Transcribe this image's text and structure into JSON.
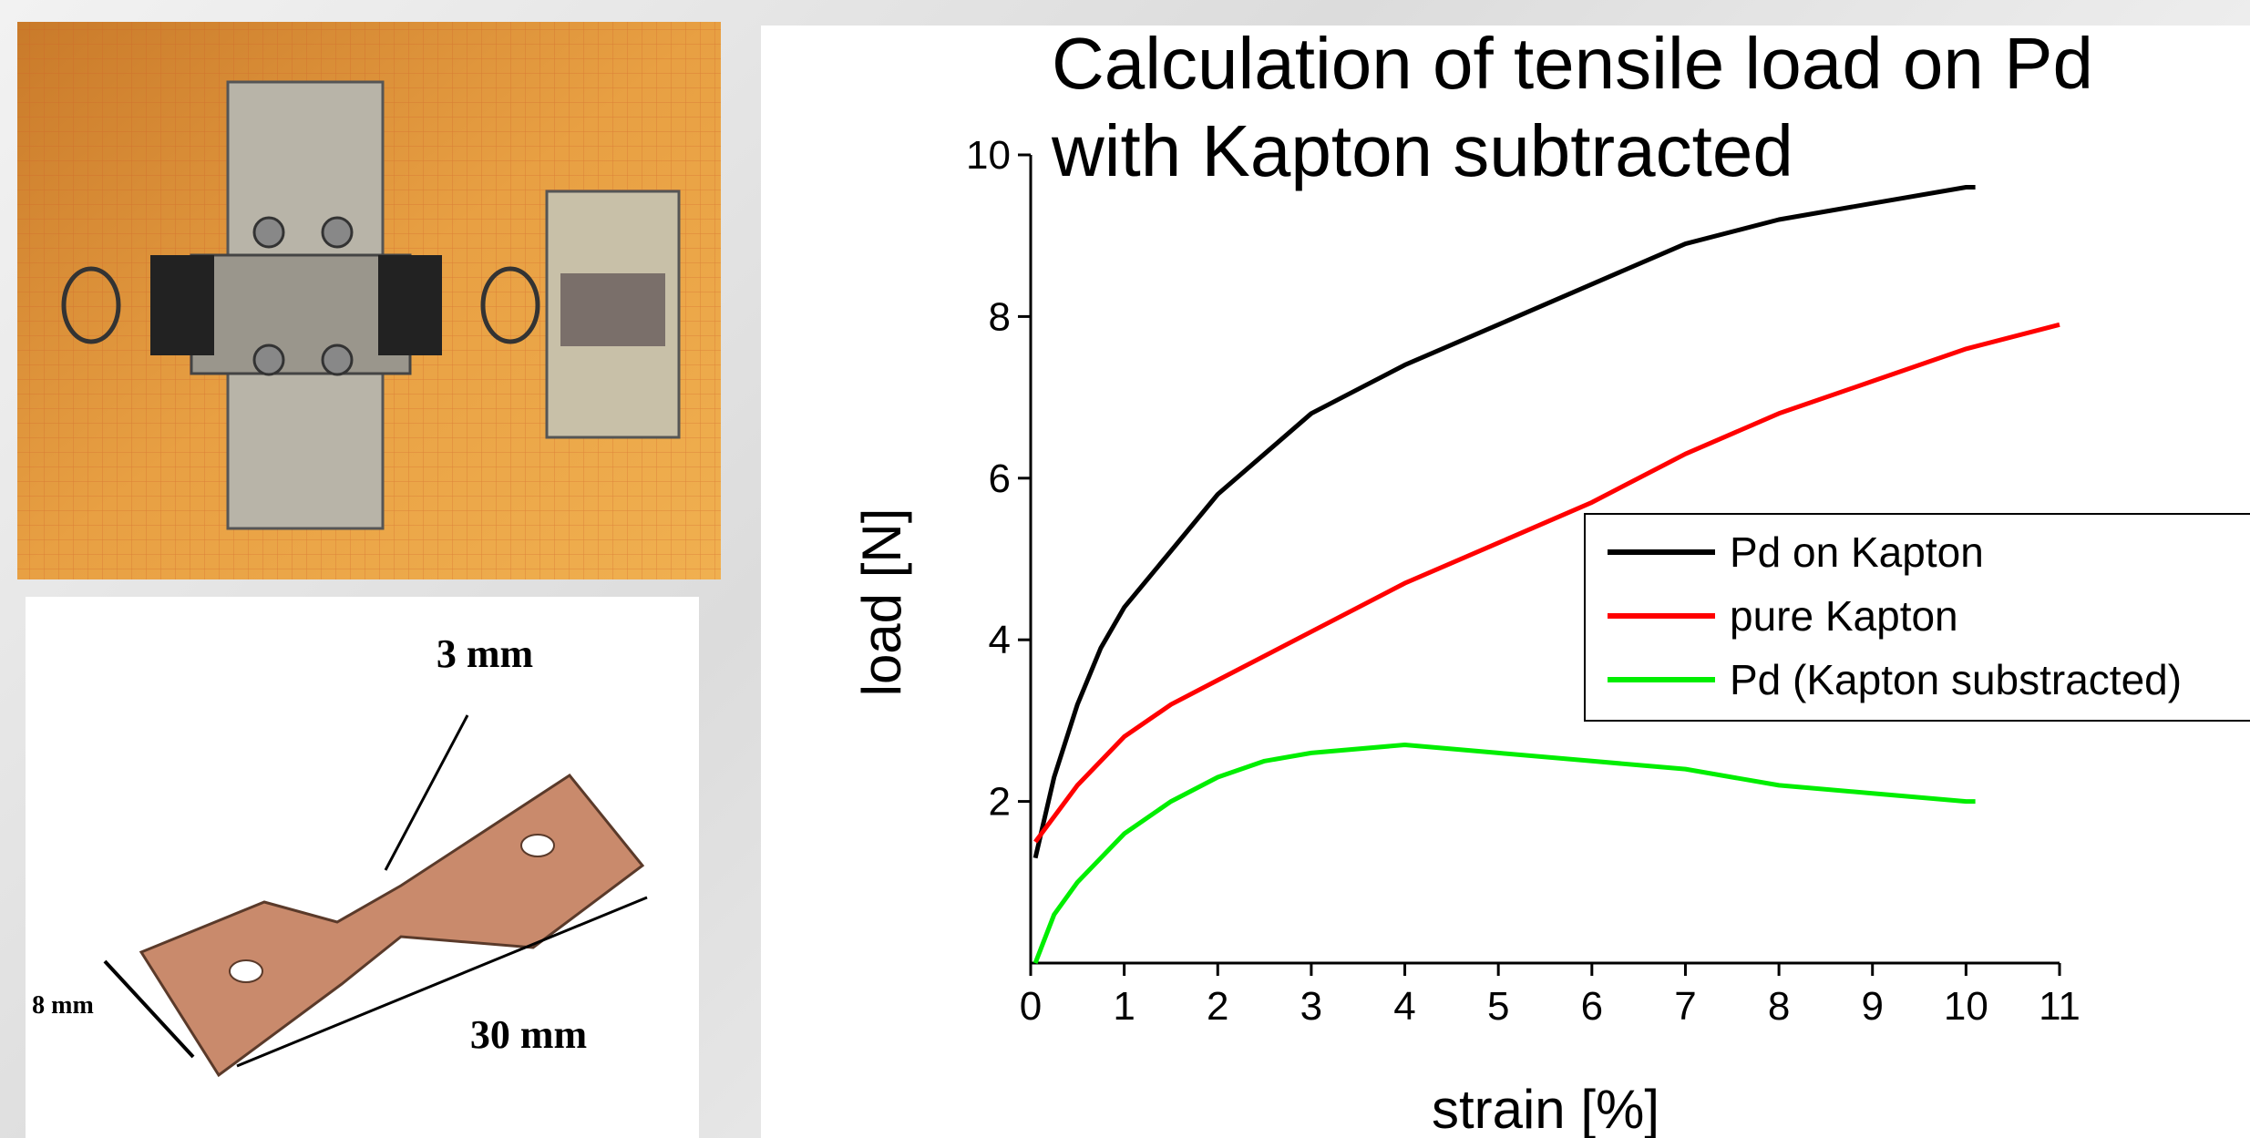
{
  "chart_data": {
    "type": "line",
    "title": "Calculation of tensile load on Pd with Kapton subtracted",
    "xlabel": "strain [%]",
    "ylabel": "load [N]",
    "xlim": [
      0,
      11
    ],
    "ylim": [
      0,
      10
    ],
    "xticks": [
      0,
      1,
      2,
      3,
      4,
      5,
      6,
      7,
      8,
      9,
      10,
      11
    ],
    "yticks": [
      2,
      4,
      6,
      8,
      10
    ],
    "legend": "right",
    "series": [
      {
        "name": "Pd on Kapton",
        "color": "#000000",
        "x": [
          0.05,
          0.25,
          0.5,
          0.75,
          1,
          1.5,
          2,
          2.5,
          3,
          3.5,
          4,
          5,
          6,
          7,
          8,
          9,
          10,
          10.1
        ],
        "values": [
          1.3,
          2.3,
          3.2,
          3.9,
          4.4,
          5.1,
          5.8,
          6.3,
          6.8,
          7.1,
          7.4,
          7.9,
          8.4,
          8.9,
          9.2,
          9.4,
          9.6,
          9.6
        ]
      },
      {
        "name": "pure Kapton",
        "color": "#ff0000",
        "x": [
          0.05,
          0.5,
          1,
          1.5,
          2,
          3,
          4,
          5,
          6,
          7,
          8,
          9,
          10,
          11
        ],
        "values": [
          1.5,
          2.2,
          2.8,
          3.2,
          3.5,
          4.1,
          4.7,
          5.2,
          5.7,
          6.3,
          6.8,
          7.2,
          7.6,
          7.9
        ]
      },
      {
        "name": "Pd (Kapton substracted)",
        "color": "#00ee00",
        "x": [
          0.05,
          0.25,
          0.5,
          1,
          1.5,
          2,
          2.5,
          3,
          4,
          5,
          6,
          7,
          8,
          9,
          10,
          10.1
        ],
        "values": [
          0,
          0.6,
          1.0,
          1.6,
          2.0,
          2.3,
          2.5,
          2.6,
          2.7,
          2.6,
          2.5,
          2.4,
          2.2,
          2.1,
          2.0,
          2.0
        ]
      }
    ]
  },
  "specimen_diagram": {
    "labels": [
      "3 mm",
      "8 mm",
      "30 mm"
    ]
  }
}
